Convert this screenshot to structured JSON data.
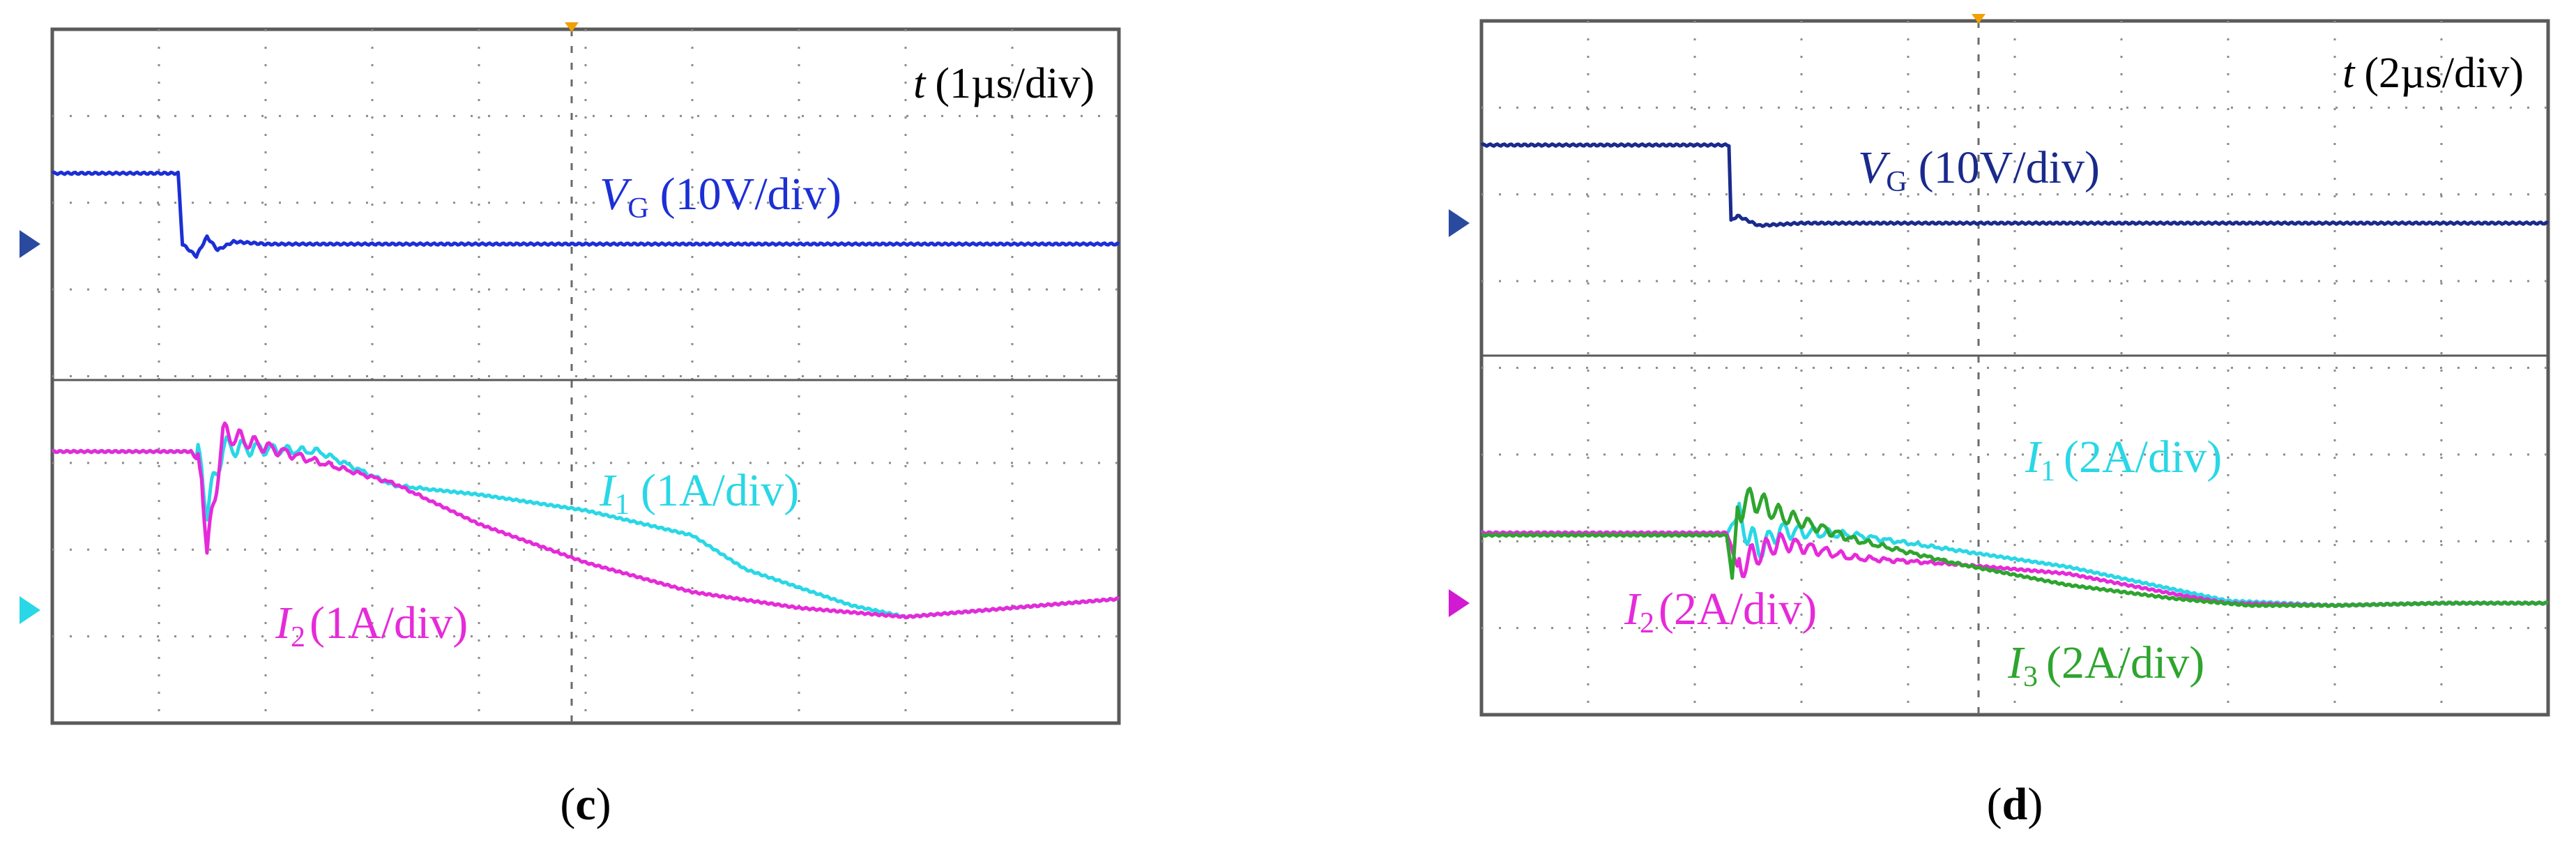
{
  "colors": {
    "vg_c": "#1c2fd6",
    "vg_d": "#1a2a8c",
    "i1": "#2ad7e6",
    "i2": "#e62ad9",
    "i3": "#2ea52e",
    "frame": "#5a5a5a",
    "grid": "#8c8c8c",
    "marker_top": "#f0a000",
    "marker_vg": "#2a4aa0",
    "marker_i1_c": "#2ad7e6",
    "marker_i2_d": "#d21ad2"
  },
  "panels": {
    "c": {
      "caption": "(c)",
      "time_label": "t (1µs/div)",
      "time_sym": "t",
      "time_unit": "(1µs/div)"
    },
    "d": {
      "caption": "(d)",
      "time_label": "t (2µs/div)",
      "time_sym": "t",
      "time_unit": "(2µs/div)"
    }
  },
  "chart_data": [
    {
      "type": "line",
      "panel": "c",
      "x_unit": "div",
      "x_scale": "1µs/div",
      "xlim": [
        0,
        10
      ],
      "divisions": {
        "x": 10,
        "y": 8
      },
      "series": [
        {
          "name": "VG (10V/div)",
          "symbol": "V",
          "sub": "G",
          "unit": "(10V/div)",
          "color_key": "vg_c",
          "panel_area": "top",
          "x": [
            0,
            1.18,
            1.22,
            1.35,
            1.45,
            1.55,
            1.7,
            2.0,
            10
          ],
          "y": [
            1.45,
            1.45,
            0.0,
            -0.25,
            0.15,
            -0.12,
            0.05,
            0.0,
            0.0
          ]
        },
        {
          "name": "I1 (1A/div)",
          "symbol": "I",
          "sub": "1",
          "unit": "(1A/div)",
          "color_key": "i1",
          "panel_area": "bottom",
          "x": [
            0,
            1.3,
            1.4,
            1.45,
            1.6,
            2.5,
            3.2,
            4.0,
            5.0,
            6.0,
            6.5,
            7.5,
            8.0,
            9.0,
            10
          ],
          "y": [
            3.5,
            3.5,
            3.2,
            2.2,
            3.6,
            3.5,
            2.75,
            2.55,
            2.2,
            1.65,
            0.9,
            0.1,
            -0.15,
            0.05,
            0.25
          ]
        },
        {
          "name": "I2 (1A/div)",
          "symbol": "I",
          "sub": "2",
          "unit": "(1A/div)",
          "color_key": "i2",
          "panel_area": "bottom",
          "x": [
            0,
            1.3,
            1.4,
            1.45,
            1.6,
            2.0,
            3.2,
            4.0,
            5.0,
            6.0,
            7.0,
            8.0,
            9.0,
            10
          ],
          "y": [
            3.5,
            3.5,
            3.2,
            1.2,
            3.9,
            3.6,
            2.8,
            1.9,
            1.05,
            0.4,
            0.05,
            -0.15,
            0.05,
            0.25
          ]
        }
      ]
    },
    {
      "type": "line",
      "panel": "d",
      "x_unit": "div",
      "x_scale": "2µs/div",
      "xlim": [
        0,
        10
      ],
      "divisions": {
        "x": 10,
        "y": 8
      },
      "series": [
        {
          "name": "VG (10V/div)",
          "symbol": "V",
          "sub": "G",
          "unit": "(10V/div)",
          "color_key": "vg_d",
          "panel_area": "top",
          "x": [
            0,
            2.32,
            2.34,
            2.4,
            2.6,
            3.0,
            10
          ],
          "y": [
            1.6,
            1.6,
            0.05,
            0.15,
            -0.05,
            0.0,
            0.0
          ]
        },
        {
          "name": "I1 (2A/div)",
          "symbol": "I",
          "sub": "1",
          "unit": "(2A/div)",
          "color_key": "i1",
          "panel_area": "bottom",
          "x": [
            0,
            2.3,
            2.4,
            2.6,
            2.8,
            3.5,
            4.5,
            5.5,
            6.5,
            7.0,
            8.0,
            9.0,
            10
          ],
          "y": [
            1.55,
            1.55,
            1.9,
            1.2,
            1.6,
            1.5,
            1.15,
            0.8,
            0.3,
            0.05,
            -0.05,
            0.0,
            0.0
          ]
        },
        {
          "name": "I2 (2A/div)",
          "symbol": "I",
          "sub": "2",
          "unit": "(2A/div)",
          "color_key": "i2",
          "panel_area": "bottom",
          "x": [
            0,
            2.3,
            2.4,
            2.6,
            2.8,
            3.5,
            4.5,
            5.5,
            6.5,
            7.0,
            8.0,
            9.0,
            10
          ],
          "y": [
            1.55,
            1.55,
            0.8,
            1.1,
            1.35,
            1.0,
            0.85,
            0.65,
            0.2,
            0.0,
            -0.05,
            0.0,
            0.0
          ]
        },
        {
          "name": "I3 (2A/div)",
          "symbol": "I",
          "sub": "3",
          "unit": "(2A/div)",
          "color_key": "i3",
          "panel_area": "bottom",
          "x": [
            0,
            2.3,
            2.35,
            2.4,
            2.55,
            2.8,
            3.0,
            3.5,
            4.5,
            5.5,
            6.5,
            7.2,
            8.0,
            9.0,
            10
          ],
          "y": [
            1.5,
            1.5,
            0.55,
            2.1,
            2.3,
            1.95,
            1.8,
            1.4,
            0.85,
            0.4,
            0.1,
            -0.05,
            -0.05,
            0.0,
            0.0
          ]
        }
      ]
    }
  ]
}
